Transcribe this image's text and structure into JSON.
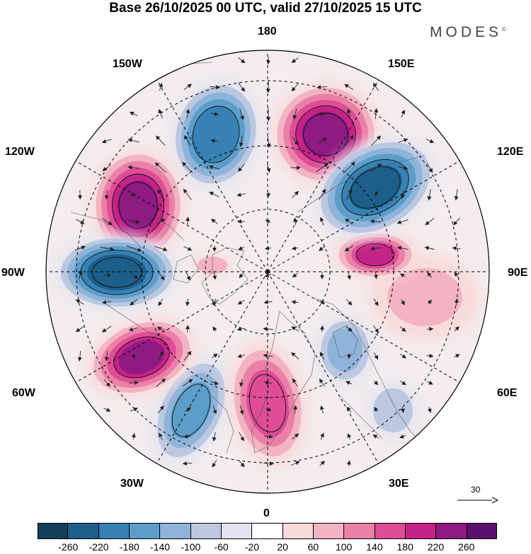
{
  "header": {
    "title": "Base 26/10/2025 00 UTC, valid 27/10/2025 15 UTC",
    "brand": "MODES",
    "brand_mark": "©"
  },
  "map": {
    "projection": "north polar stereographic",
    "longitude_labels": {
      "lon_180": "180",
      "lon_150w": "150W",
      "lon_150e": "150E",
      "lon_120w": "120W",
      "lon_120e": "120E",
      "lon_90w": "90W",
      "lon_90e": "90E",
      "lon_60w": "60W",
      "lon_60e": "60E",
      "lon_30w": "30W",
      "lon_30e": "30E",
      "lon_0": "0"
    },
    "reference_vector": {
      "label": "30"
    }
  },
  "colorbar": {
    "ticks": [
      "-260",
      "-220",
      "-180",
      "-140",
      "-100",
      "-60",
      "-20",
      "20",
      "60",
      "100",
      "140",
      "180",
      "220",
      "260"
    ],
    "colors": [
      "#143f5c",
      "#1d5f8a",
      "#3781b5",
      "#5d9dca",
      "#8fb4d9",
      "#bcc8e2",
      "#e4e4f0",
      "#ffffff",
      "#f9dada",
      "#f3b3c2",
      "#ea80a8",
      "#de4d96",
      "#c42388",
      "#8f1a82",
      "#5a1270"
    ]
  },
  "anomalies": [
    {
      "name": "pos-150e",
      "value": 250
    },
    {
      "name": "neg-160w",
      "value": -230
    },
    {
      "name": "neg-125e",
      "value": -250
    },
    {
      "name": "pos-120w",
      "value": 250
    },
    {
      "name": "neg-90w",
      "value": -270
    },
    {
      "name": "pos-90e",
      "value": 190
    },
    {
      "name": "pos-60w",
      "value": 230
    },
    {
      "name": "neg-45w",
      "value": -170
    },
    {
      "name": "pos-5e",
      "value": 180
    },
    {
      "name": "neg-50e",
      "value": -130
    },
    {
      "name": "neg-30e",
      "value": -110
    },
    {
      "name": "pos-110w-small",
      "value": 70
    },
    {
      "name": "pos-100e-weak",
      "value": 80
    }
  ]
}
